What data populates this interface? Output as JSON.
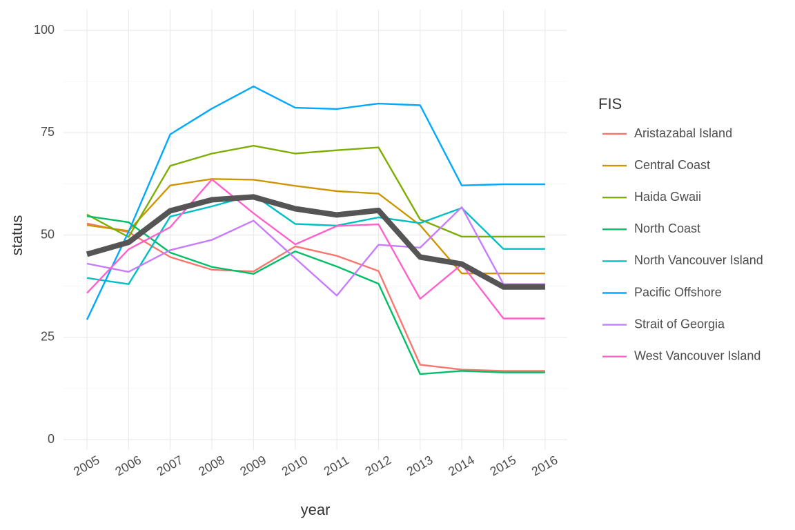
{
  "chart_data": {
    "type": "line",
    "xlabel": "year",
    "ylabel": "status",
    "ylim": [
      0,
      100
    ],
    "y_ticks": [
      0,
      25,
      50,
      75,
      100
    ],
    "x": [
      "2005",
      "2006",
      "2007",
      "2008",
      "2009",
      "2010",
      "2011",
      "2012",
      "2013",
      "2014",
      "2015",
      "2016"
    ],
    "legend_title": "FIS",
    "legend_position": "right",
    "grid": true,
    "series": [
      {
        "name": "Aristazabal Island",
        "color": "#F8766D",
        "values": [
          52.8,
          50.7,
          44.6,
          41.5,
          41.1,
          47.2,
          44.9,
          41.2,
          18.3,
          17.1,
          16.8,
          16.8
        ]
      },
      {
        "name": "Central Coast",
        "color": "#CD9600",
        "values": [
          52.4,
          51.0,
          62.1,
          63.7,
          63.5,
          62.0,
          60.7,
          60.1,
          52.4,
          40.6,
          40.6,
          40.6
        ]
      },
      {
        "name": "Haida Gwaii",
        "color": "#7CAE00",
        "values": [
          55.0,
          49.5,
          66.9,
          69.9,
          71.8,
          69.9,
          70.7,
          71.4,
          53.8,
          49.6,
          49.6,
          49.6
        ]
      },
      {
        "name": "North Coast",
        "color": "#00BE67",
        "values": [
          54.6,
          53.1,
          45.7,
          42.2,
          40.5,
          46.0,
          42.3,
          38.1,
          16.0,
          16.8,
          16.4,
          16.4
        ]
      },
      {
        "name": "North Vancouver Island",
        "color": "#00BFC4",
        "values": [
          39.5,
          38.0,
          54.5,
          57.0,
          59.8,
          52.7,
          52.3,
          54.3,
          52.9,
          56.6,
          46.6,
          46.6
        ]
      },
      {
        "name": "Pacific Offshore",
        "color": "#00A9FF",
        "values": [
          29.3,
          50.8,
          74.6,
          80.9,
          86.3,
          81.1,
          80.8,
          82.1,
          81.7,
          62.1,
          62.4,
          62.4
        ]
      },
      {
        "name": "Strait of Georgia",
        "color": "#C77CFF",
        "values": [
          43.0,
          41.0,
          46.3,
          48.8,
          53.5,
          44.3,
          35.2,
          47.6,
          46.9,
          56.8,
          38.0,
          38.0
        ]
      },
      {
        "name": "West Vancouver Island",
        "color": "#FF61CC",
        "values": [
          35.8,
          46.5,
          51.9,
          63.6,
          55.3,
          47.7,
          52.2,
          52.6,
          34.4,
          42.8,
          29.6,
          29.6
        ]
      }
    ],
    "overall": {
      "color": "#555555",
      "values": [
        45.3,
        48.2,
        55.9,
        58.6,
        59.3,
        56.4,
        54.9,
        56.0,
        44.6,
        42.9,
        37.3,
        37.3
      ]
    }
  }
}
